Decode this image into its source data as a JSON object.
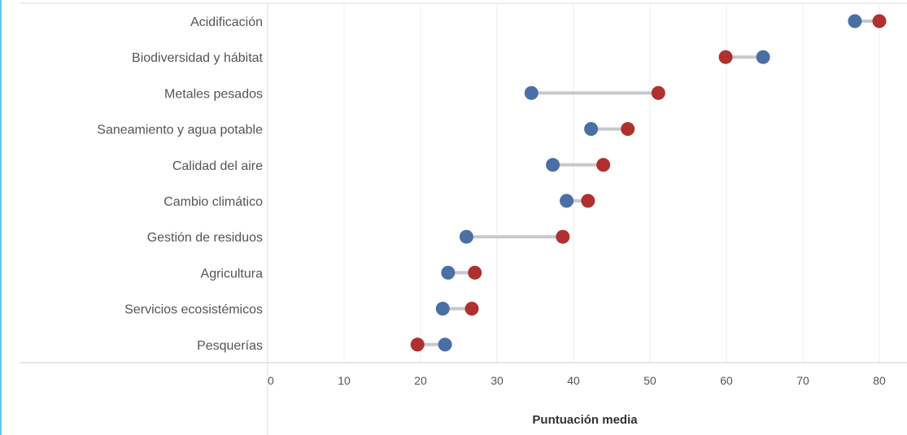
{
  "chart_data": {
    "type": "dumbbell",
    "categories": [
      "Acidificación",
      "Biodiversidad y hábitat",
      "Metales pesados",
      "Saneamiento y agua potable",
      "Calidad del aire",
      "Cambio climático",
      "Gestión de residuos",
      "Agricultura",
      "Servicios ecosistémicos",
      "Pesquerías"
    ],
    "series": [
      {
        "color": "#4a6fa5",
        "values": [
          76.8,
          64.8,
          34.5,
          42.3,
          37.3,
          39.1,
          26.0,
          23.6,
          22.9,
          23.2
        ]
      },
      {
        "color": "#b03030",
        "values": [
          80.0,
          59.9,
          51.1,
          47.1,
          43.9,
          41.9,
          38.6,
          27.1,
          26.7,
          19.6
        ]
      }
    ],
    "xlabel": "Puntuación media",
    "xlim": [
      0,
      80
    ],
    "xticks": [
      0,
      10,
      20,
      30,
      40,
      50,
      60,
      70,
      80
    ],
    "xtick_labels": [
      "0",
      "10",
      "20",
      "30",
      "40",
      "50",
      "60",
      "70",
      "80"
    ],
    "grid": "vertical",
    "connector_color": "#c8c8cc"
  }
}
